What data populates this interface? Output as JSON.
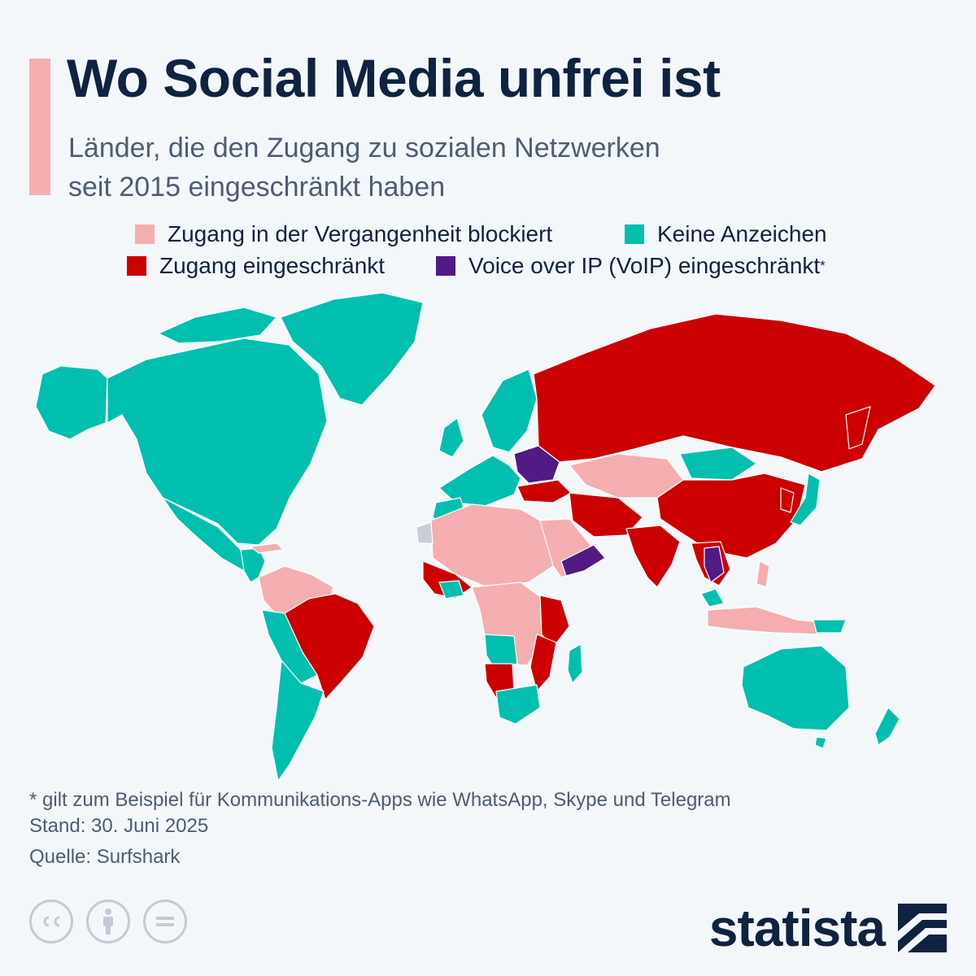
{
  "header": {
    "title": "Wo Social Media unfrei ist",
    "subtitle_line1": "Länder, die den Zugang zu sozialen Netzwerken",
    "subtitle_line2": "seit 2015 eingeschränkt haben"
  },
  "legend": [
    {
      "label": "Zugang in der Vergangenheit blockiert",
      "color": "#f4aeb0"
    },
    {
      "label": "Keine Anzeichen",
      "color": "#00bfae"
    },
    {
      "label": "Zugang eingeschränkt",
      "color": "#cc0000"
    },
    {
      "label": "Voice over IP (VoIP) eingeschränkt",
      "color": "#521a85",
      "star": "*"
    }
  ],
  "footer": {
    "note": "* gilt zum Beispiel für Kommunikations-Apps wie WhatsApp, Skype und Telegram",
    "date": "Stand: 30. Juni 2025",
    "source": "Quelle: Surfshark"
  },
  "license_icons": [
    "creative-commons-icon",
    "attribution-icon",
    "no-derivatives-icon"
  ],
  "brand": {
    "name": "statista"
  },
  "colors": {
    "blocked_past": "#f4aeb0",
    "no_signs": "#00bfae",
    "restricted": "#cc0000",
    "voip_restricted": "#521a85",
    "no_data": "#c8cfd6"
  }
}
